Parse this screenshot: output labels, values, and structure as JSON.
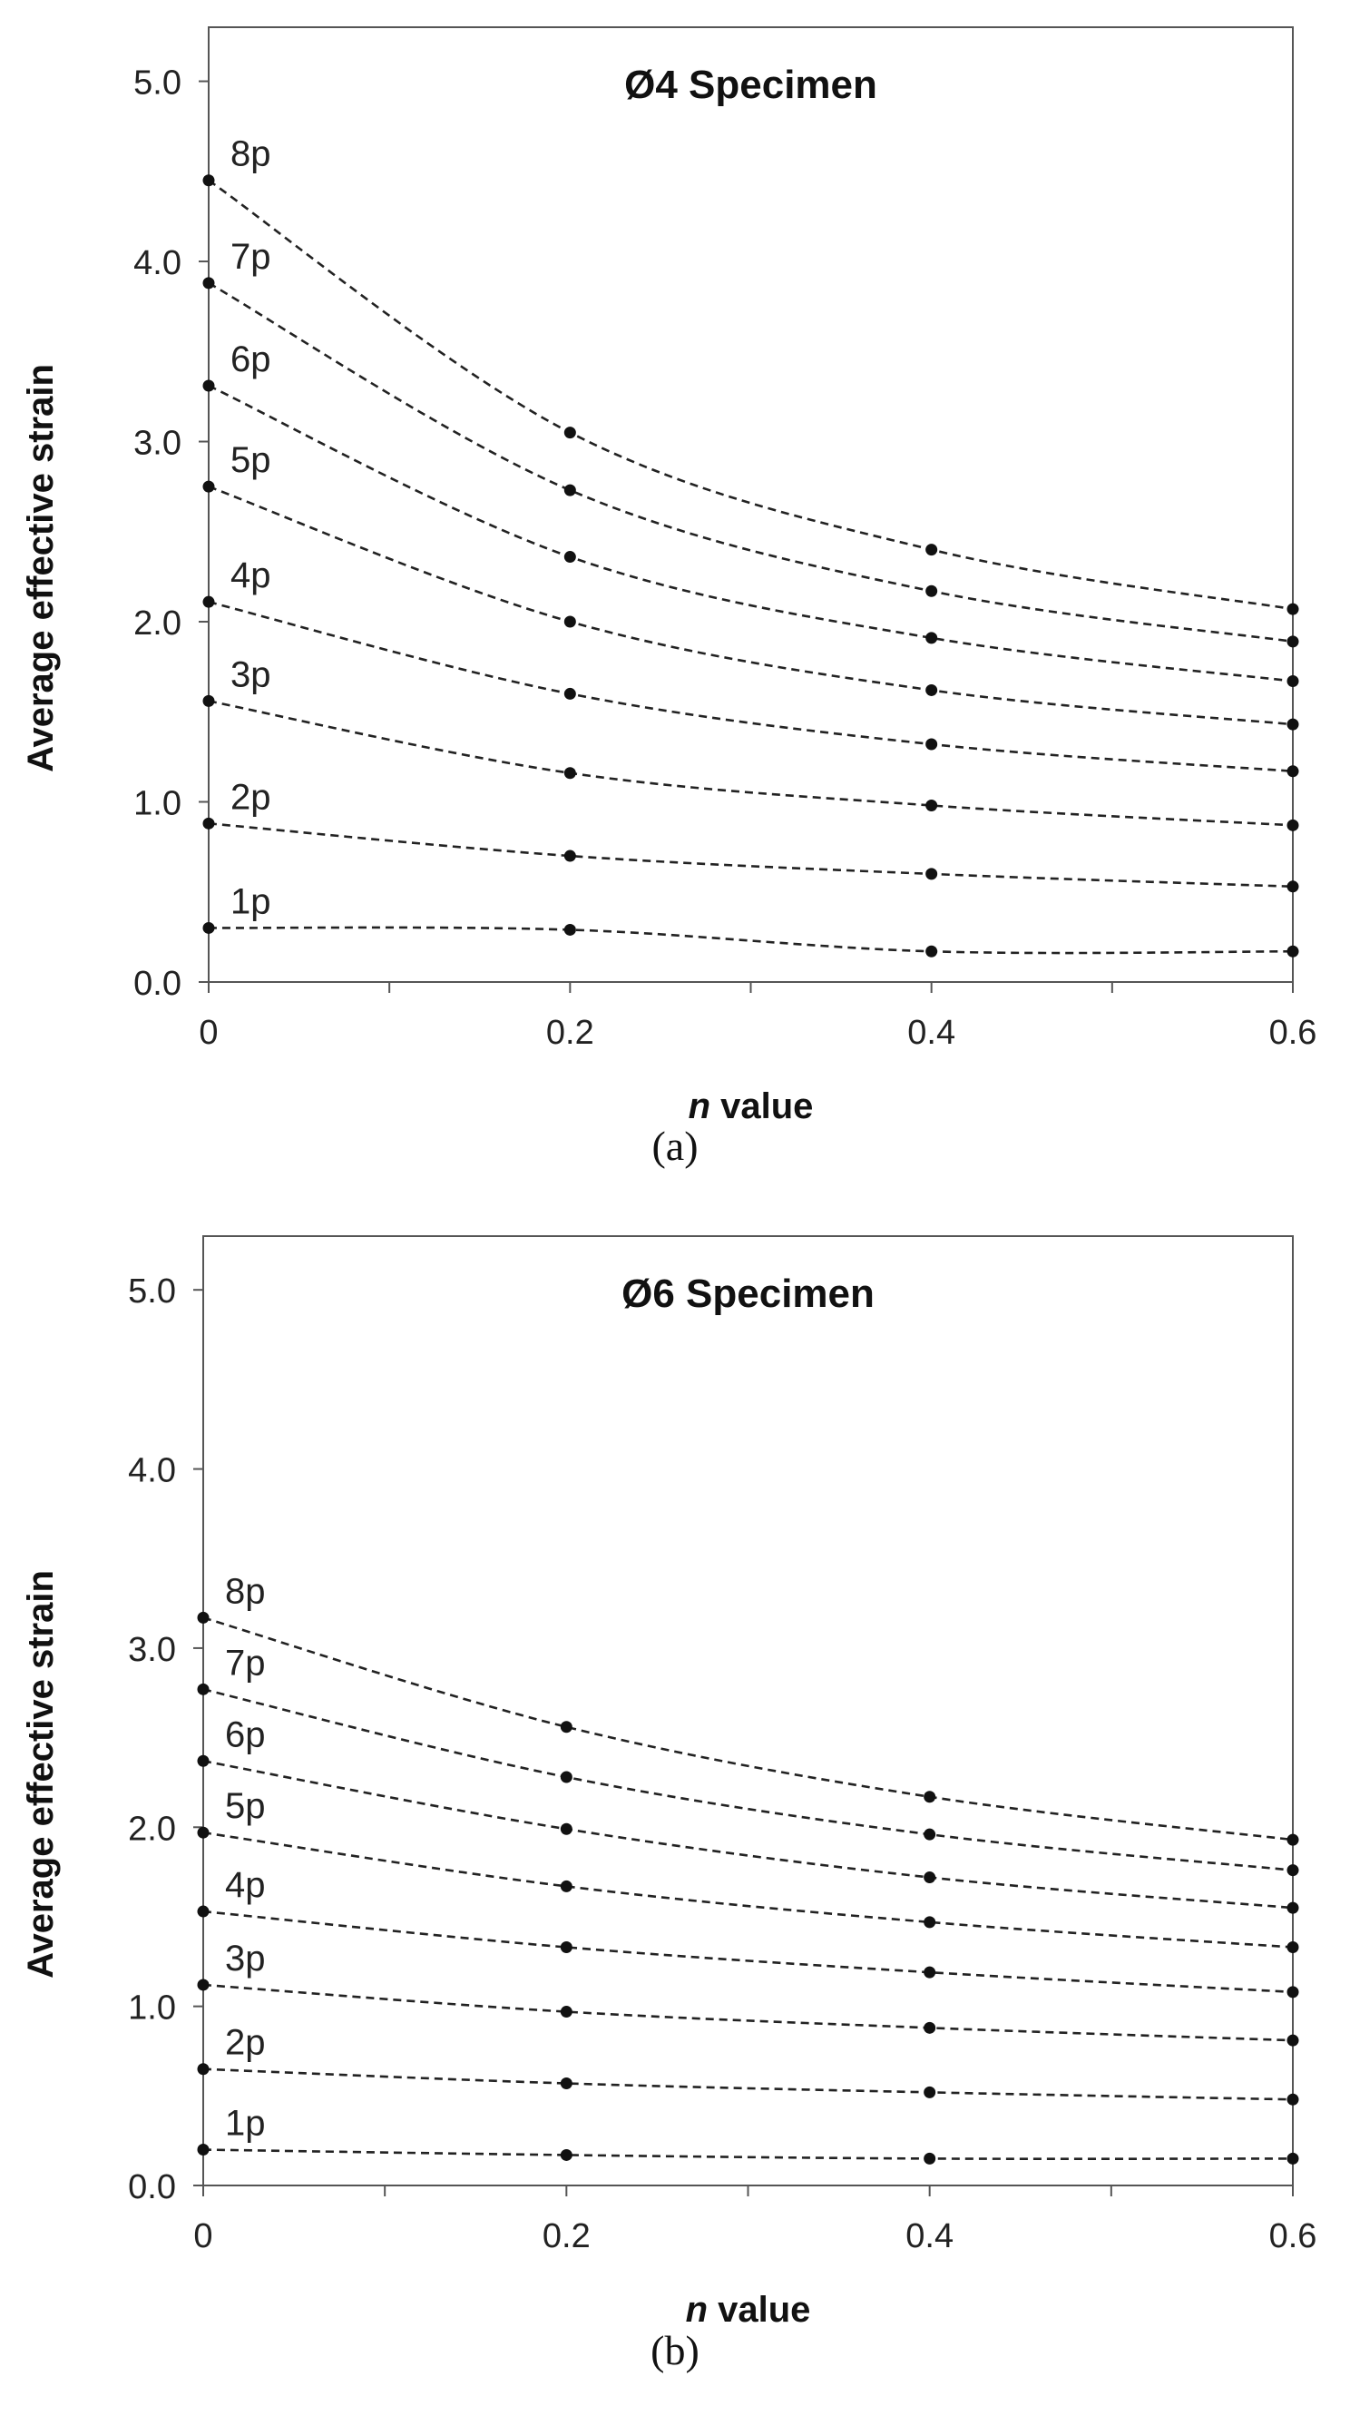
{
  "chart_data": [
    {
      "panel": "a",
      "type": "line",
      "title": "Ø4 Specimen",
      "caption": "(a)",
      "xlabel_italic": "n",
      "xlabel_rest": " value",
      "ylabel": "Average effective strain",
      "xlim": [
        0,
        0.6
      ],
      "ylim": [
        0,
        5.3
      ],
      "xticks": [
        0,
        0.1,
        0.2,
        0.3,
        0.4,
        0.5,
        0.6
      ],
      "xtick_labels": [
        "0",
        "",
        "0.2",
        "",
        "0.4",
        "",
        "0.6"
      ],
      "yticks": [
        0,
        1,
        2,
        3,
        4,
        5
      ],
      "ytick_labels": [
        "0.0",
        "1.0",
        "2.0",
        "3.0",
        "4.0",
        "5.0"
      ],
      "x": [
        0,
        0.2,
        0.4,
        0.6
      ],
      "series": [
        {
          "name": "1p",
          "values": [
            0.3,
            0.29,
            0.17,
            0.17
          ]
        },
        {
          "name": "2p",
          "values": [
            0.88,
            0.7,
            0.6,
            0.53
          ]
        },
        {
          "name": "3p",
          "values": [
            1.56,
            1.16,
            0.98,
            0.87
          ]
        },
        {
          "name": "4p",
          "values": [
            2.11,
            1.6,
            1.32,
            1.17
          ]
        },
        {
          "name": "5p",
          "values": [
            2.75,
            2.0,
            1.62,
            1.43
          ]
        },
        {
          "name": "6p",
          "values": [
            3.31,
            2.36,
            1.91,
            1.67
          ]
        },
        {
          "name": "7p",
          "values": [
            3.88,
            2.73,
            2.17,
            1.89
          ]
        },
        {
          "name": "8p",
          "values": [
            4.45,
            3.05,
            2.4,
            2.07
          ]
        }
      ]
    },
    {
      "panel": "b",
      "type": "line",
      "title": "Ø6 Specimen",
      "caption": "(b)",
      "xlabel_italic": "n",
      "xlabel_rest": " value",
      "ylabel": "Average effective strain",
      "xlim": [
        0,
        0.6
      ],
      "ylim": [
        0,
        5.3
      ],
      "xticks": [
        0,
        0.1,
        0.2,
        0.3,
        0.4,
        0.5,
        0.6
      ],
      "xtick_labels": [
        "0",
        "",
        "0.2",
        "",
        "0.4",
        "",
        "0.6"
      ],
      "yticks": [
        0,
        1,
        2,
        3,
        4,
        5
      ],
      "ytick_labels": [
        "0.0",
        "1.0",
        "2.0",
        "3.0",
        "4.0",
        "5.0"
      ],
      "x": [
        0,
        0.2,
        0.4,
        0.6
      ],
      "series": [
        {
          "name": "1p",
          "values": [
            0.2,
            0.17,
            0.15,
            0.15
          ]
        },
        {
          "name": "2p",
          "values": [
            0.65,
            0.57,
            0.52,
            0.48
          ]
        },
        {
          "name": "3p",
          "values": [
            1.12,
            0.97,
            0.88,
            0.81
          ]
        },
        {
          "name": "4p",
          "values": [
            1.53,
            1.33,
            1.19,
            1.08
          ]
        },
        {
          "name": "5p",
          "values": [
            1.97,
            1.67,
            1.47,
            1.33
          ]
        },
        {
          "name": "6p",
          "values": [
            2.37,
            1.99,
            1.72,
            1.55
          ]
        },
        {
          "name": "7p",
          "values": [
            2.77,
            2.28,
            1.96,
            1.76
          ]
        },
        {
          "name": "8p",
          "values": [
            3.17,
            2.56,
            2.17,
            1.93
          ]
        }
      ]
    }
  ]
}
